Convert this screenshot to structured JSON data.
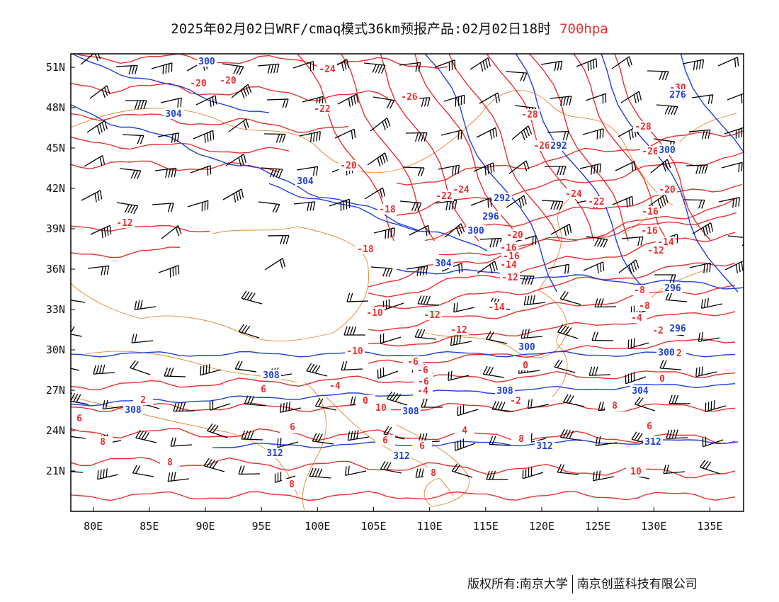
{
  "title": {
    "main": "2025年02月02日WRF/cmaq模式36km预报产品:02月02日18时",
    "level": "700hpa",
    "level_color": "#e83030"
  },
  "map": {
    "lon_range": [
      78,
      138
    ],
    "lat_range": [
      18,
      52
    ],
    "lat_ticks": [
      "51N",
      "48N",
      "45N",
      "42N",
      "39N",
      "36N",
      "33N",
      "30N",
      "27N",
      "24N",
      "21N"
    ],
    "lon_ticks": [
      "80E",
      "85E",
      "90E",
      "95E",
      "100E",
      "105E",
      "110E",
      "115E",
      "120E",
      "125E",
      "130E",
      "135E"
    ],
    "colors": {
      "temperature": "#e83030",
      "height": "#1f3fd8",
      "boundary": "#e0882f",
      "wind": "#000000"
    },
    "temperature_labels": [
      "-24",
      "-20",
      "-20",
      "-22",
      "-26",
      "-28",
      "-30",
      "-26",
      "-28",
      "-26",
      "-20",
      "-24",
      "-22",
      "-20",
      "-18",
      "-22",
      "-24",
      "-12",
      "-16",
      "-18",
      "-20",
      "-16",
      "-16",
      "-14",
      "-12",
      "-16",
      "-14",
      "-12",
      "-14",
      "-10",
      "-12",
      "-12",
      "-8",
      "-8",
      "-6",
      "-6",
      "-4",
      "-2",
      "-10",
      "-6",
      "-4",
      "-2",
      "0",
      "0",
      "-4",
      "-2",
      "2",
      "0",
      "2",
      "4",
      "6",
      "6",
      "8",
      "8",
      "6",
      "8",
      "8",
      "10",
      "10",
      "8",
      "4",
      "6",
      "8",
      "6",
      "6",
      "-2",
      "0"
    ],
    "height_labels": [
      "300",
      "304",
      "304",
      "300",
      "296",
      "292",
      "304",
      "296",
      "292",
      "300",
      "296",
      "300",
      "304",
      "308",
      "308",
      "308",
      "312",
      "308",
      "312",
      "312",
      "312",
      "276",
      "300"
    ]
  },
  "footer": {
    "left": "版权所有:南京大学",
    "right": "南京创蓝科技有限公司"
  }
}
